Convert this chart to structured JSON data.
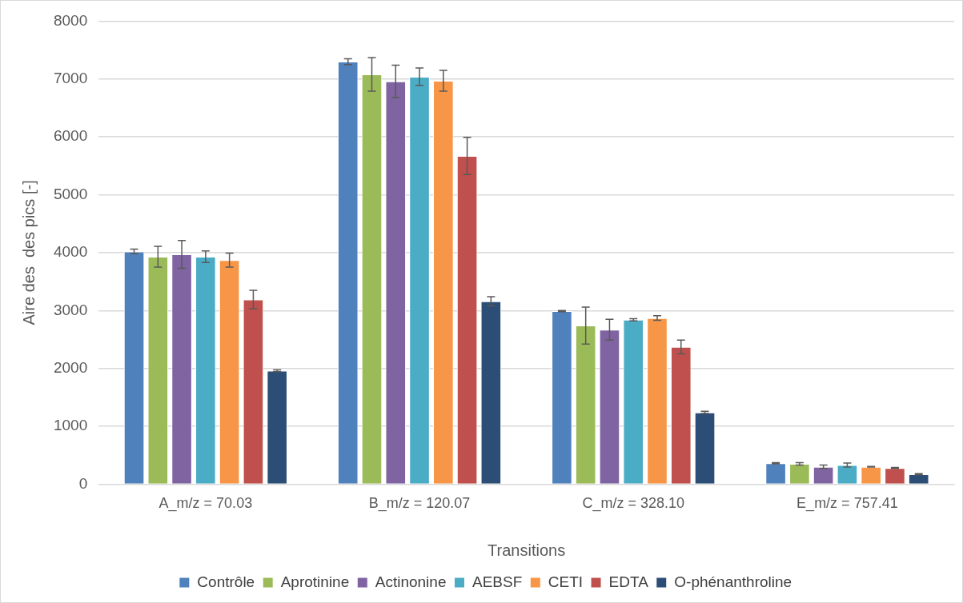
{
  "chart_data": {
    "type": "bar",
    "xlabel": "Transitions",
    "ylabel": "Aire des  des pics [-]",
    "categories": [
      "A_m/z = 70.03",
      "B_m/z = 120.07",
      "C_m/z = 328.10",
      "E_m/z = 757.41"
    ],
    "ylim": [
      0,
      8000
    ],
    "yticks": [
      0,
      1000,
      2000,
      3000,
      4000,
      5000,
      6000,
      7000,
      8000
    ],
    "grid": "y",
    "legend": "bottom",
    "series": [
      {
        "name": "Contrôle",
        "color": "#4f81bd",
        "values": [
          4020,
          7300,
          2990,
          360
        ],
        "errors": [
          40,
          50,
          10,
          10
        ]
      },
      {
        "name": "Aprotinine",
        "color": "#9bbb59",
        "values": [
          3930,
          7080,
          2740,
          350
        ],
        "errors": [
          180,
          290,
          320,
          20
        ]
      },
      {
        "name": "Actinonine",
        "color": "#8064a2",
        "values": [
          3970,
          6960,
          2670,
          300
        ],
        "errors": [
          240,
          280,
          180,
          30
        ]
      },
      {
        "name": "AEBSF",
        "color": "#4bacc6",
        "values": [
          3930,
          7040,
          2840,
          330
        ],
        "errors": [
          100,
          150,
          20,
          35
        ]
      },
      {
        "name": "CETI",
        "color": "#f79646",
        "values": [
          3870,
          6970,
          2870,
          300
        ],
        "errors": [
          120,
          180,
          40,
          5
        ]
      },
      {
        "name": "EDTA",
        "color": "#c0504d",
        "values": [
          3190,
          5670,
          2370,
          280
        ],
        "errors": [
          160,
          320,
          120,
          10
        ]
      },
      {
        "name": "O-phénanthroline",
        "color": "#2c4d75",
        "values": [
          1960,
          3160,
          1240,
          170
        ],
        "errors": [
          15,
          80,
          20,
          10
        ]
      }
    ]
  }
}
